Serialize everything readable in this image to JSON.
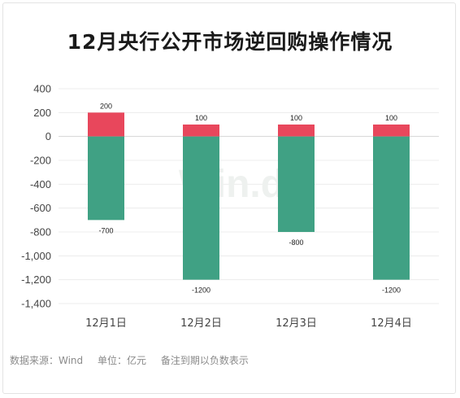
{
  "chart_data": {
    "type": "bar",
    "title": "12月央行公开市场逆回购操作情况",
    "categories": [
      "12月1日",
      "12月2日",
      "12月3日",
      "12月4日"
    ],
    "series": [
      {
        "values": [
          200,
          100,
          100,
          100
        ],
        "color": "#e8475c"
      },
      {
        "values": [
          -700,
          -1200,
          -800,
          -1200
        ],
        "color": "#40a184"
      }
    ],
    "ylim": [
      -1400,
      400
    ],
    "yticks": [
      "400",
      "200",
      "0",
      "-200",
      "-400",
      "-600",
      "-800",
      "-1,000",
      "-1,200",
      "-1,400"
    ],
    "ytick_values": [
      400,
      200,
      0,
      -200,
      -400,
      -600,
      -800,
      -1000,
      -1200,
      -1400
    ],
    "grid": true,
    "watermark": "Win.d"
  },
  "footer": {
    "source": "数据来源：Wind",
    "unit": "单位：亿元",
    "note": "备注到期以负数表示"
  }
}
